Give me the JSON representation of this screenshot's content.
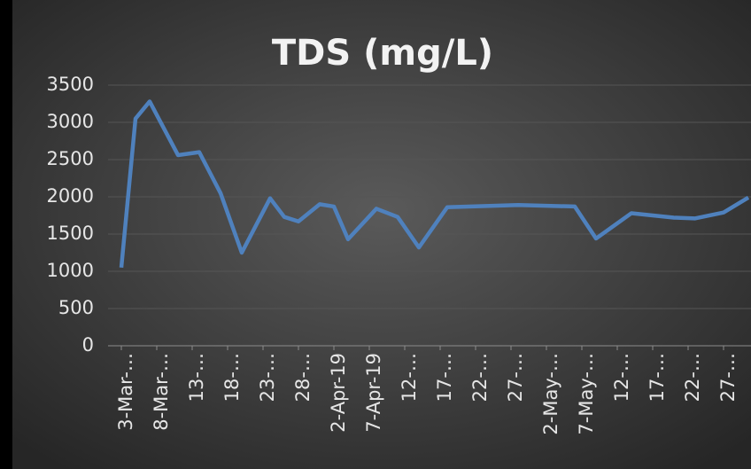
{
  "chart_data": {
    "type": "line",
    "title": "TDS (mg/L)",
    "x": [
      0,
      2,
      4,
      8,
      11,
      14,
      17,
      21,
      23,
      25,
      28,
      30,
      32,
      36,
      39,
      42,
      46,
      56,
      64,
      67,
      72,
      75,
      78,
      81,
      85,
      88.5
    ],
    "series": [
      {
        "name": "TDS (mg/L)",
        "color": "#4f81bd",
        "values": [
          1050,
          3050,
          3280,
          2560,
          2600,
          2050,
          1250,
          1980,
          1730,
          1670,
          1900,
          1870,
          1430,
          1840,
          1730,
          1320,
          1860,
          1890,
          1870,
          1440,
          1780,
          1750,
          1720,
          1710,
          1790,
          1990
        ]
      }
    ],
    "xlim": [
      0,
      89
    ],
    "xticks": [
      {
        "value": 0,
        "label": "3-Mar-…"
      },
      {
        "value": 5,
        "label": "8-Mar-…"
      },
      {
        "value": 10,
        "label": "13-…"
      },
      {
        "value": 15,
        "label": "18-…"
      },
      {
        "value": 20,
        "label": "23-…"
      },
      {
        "value": 25,
        "label": "28-…"
      },
      {
        "value": 30,
        "label": "2-Apr-19"
      },
      {
        "value": 35,
        "label": "7-Apr-19"
      },
      {
        "value": 40,
        "label": "12-…"
      },
      {
        "value": 45,
        "label": "17-…"
      },
      {
        "value": 50,
        "label": "22-…"
      },
      {
        "value": 55,
        "label": "27-…"
      },
      {
        "value": 60,
        "label": "2-May-…"
      },
      {
        "value": 65,
        "label": "7-May-…"
      },
      {
        "value": 70,
        "label": "12-…"
      },
      {
        "value": 75,
        "label": "17-…"
      },
      {
        "value": 80,
        "label": "22-…"
      },
      {
        "value": 85,
        "label": "27-…"
      }
    ],
    "ylim": [
      0,
      3500
    ],
    "yticks": [
      0,
      500,
      1000,
      1500,
      2000,
      2500,
      3000,
      3500
    ],
    "grid": true
  }
}
